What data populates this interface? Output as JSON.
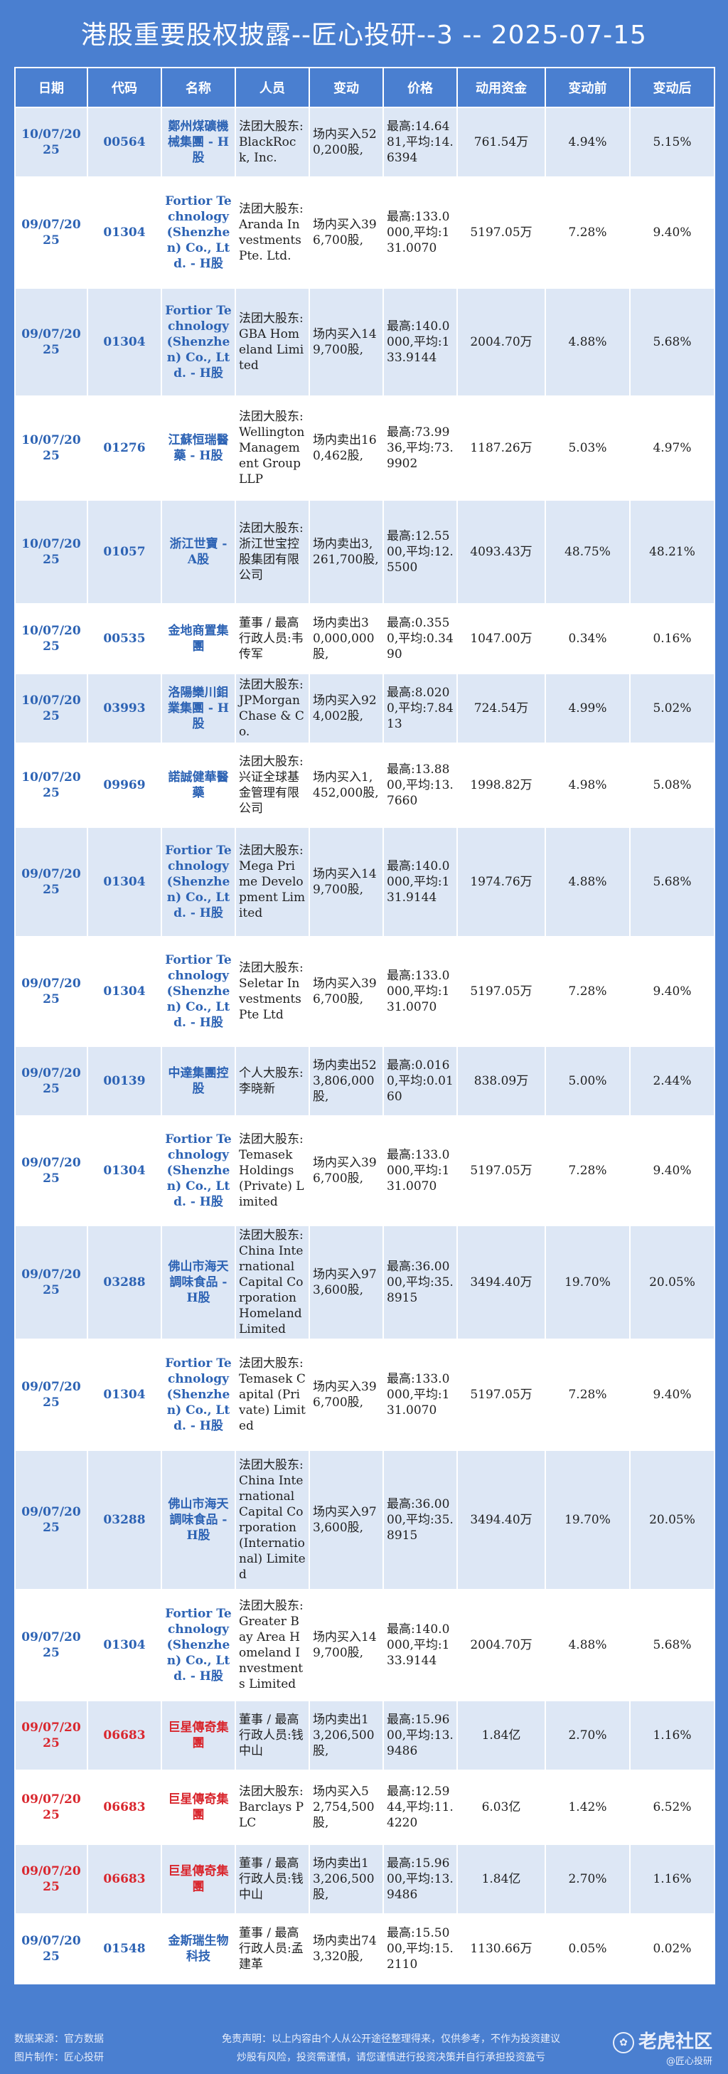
{
  "title": "港股重要股权披露--匠心投研--3 -- 2025-07-15",
  "columns": [
    "日期",
    "代码",
    "名称",
    "人员",
    "变动",
    "价格",
    "动用资金",
    "变动前",
    "变动后"
  ],
  "rows": [
    {
      "date": "10/07/2025",
      "code": "00564",
      "name": "鄭州煤礦機械集團 - H股",
      "person": "法团大股东:BlackRock, Inc.",
      "change": "场内买入520,200股,",
      "price": "最高:14.6481,平均:14.6394",
      "funds": "761.54万",
      "before": "4.94%",
      "after": "5.15%"
    },
    {
      "date": "09/07/2025",
      "code": "01304",
      "name": "Fortior Technology (Shenzhen) Co., Ltd. - H股",
      "person": "法团大股东:Aranda Investments Pte. Ltd.",
      "change": "场内买入396,700股,",
      "price": "最高:133.0000,平均:131.0070",
      "funds": "5197.05万",
      "before": "7.28%",
      "after": "9.40%"
    },
    {
      "date": "09/07/2025",
      "code": "01304",
      "name": "Fortior Technology (Shenzhen) Co., Ltd. - H股",
      "person": "法团大股东:GBA Homeland Limited",
      "change": "场内买入149,700股,",
      "price": "最高:140.0000,平均:133.9144",
      "funds": "2004.70万",
      "before": "4.88%",
      "after": "5.68%"
    },
    {
      "date": "10/07/2025",
      "code": "01276",
      "name": "江蘇恒瑞醫藥 - H股",
      "person": "法团大股东:Wellington Management Group LLP",
      "change": "场内卖出160,462股,",
      "price": "最高:73.9936,平均:73.9902",
      "funds": "1187.26万",
      "before": "5.03%",
      "after": "4.97%"
    },
    {
      "date": "10/07/2025",
      "code": "01057",
      "name": "浙江世寶 - A股",
      "person": "法团大股东:浙江世宝控股集团有限公司",
      "change": "场内卖出3,261,700股,",
      "price": "最高:12.5500,平均:12.5500",
      "funds": "4093.43万",
      "before": "48.75%",
      "after": "48.21%"
    },
    {
      "date": "10/07/2025",
      "code": "00535",
      "name": "金地商置集團",
      "person": "董事 / 最高行政人员:韦传军",
      "change": "场内卖出30,000,000股,",
      "price": "最高:0.3550,平均:0.3490",
      "funds": "1047.00万",
      "before": "0.34%",
      "after": "0.16%"
    },
    {
      "date": "10/07/2025",
      "code": "03993",
      "name": "洛陽欒川鉬業集團 - H股",
      "person": "法团大股东:JPMorgan Chase & Co.",
      "change": "场内买入924,002股,",
      "price": "最高:8.0200,平均:7.8413",
      "funds": "724.54万",
      "before": "4.99%",
      "after": "5.02%"
    },
    {
      "date": "10/07/2025",
      "code": "09969",
      "name": "諾誠健華醫藥",
      "person": "法团大股东:兴证全球基金管理有限公司",
      "change": "场内买入1,452,000股,",
      "price": "最高:13.8800,平均:13.7660",
      "funds": "1998.82万",
      "before": "4.98%",
      "after": "5.08%"
    },
    {
      "date": "09/07/2025",
      "code": "01304",
      "name": "Fortior Technology (Shenzhen) Co., Ltd. - H股",
      "person": "法团大股东:Mega Prime Development Limited",
      "change": "场内买入149,700股,",
      "price": "最高:140.0000,平均:131.9144",
      "funds": "1974.76万",
      "before": "4.88%",
      "after": "5.68%"
    },
    {
      "date": "09/07/2025",
      "code": "01304",
      "name": "Fortior Technology (Shenzhen) Co., Ltd. - H股",
      "person": "法团大股东:Seletar Investments Pte Ltd",
      "change": "场内买入396,700股,",
      "price": "最高:133.0000,平均:131.0070",
      "funds": "5197.05万",
      "before": "7.28%",
      "after": "9.40%"
    },
    {
      "date": "09/07/2025",
      "code": "00139",
      "name": "中達集團控股",
      "person": "个人大股东:李晓新",
      "change": "场内卖出523,806,000股,",
      "price": "最高:0.0160,平均:0.0160",
      "funds": "838.09万",
      "before": "5.00%",
      "after": "2.44%"
    },
    {
      "date": "09/07/2025",
      "code": "01304",
      "name": "Fortior Technology (Shenzhen) Co., Ltd. - H股",
      "person": "法团大股东:Temasek Holdings (Private) Limited",
      "change": "场内买入396,700股,",
      "price": "最高:133.0000,平均:131.0070",
      "funds": "5197.05万",
      "before": "7.28%",
      "after": "9.40%"
    },
    {
      "date": "09/07/2025",
      "code": "03288",
      "name": "佛山市海天調味食品 - H股",
      "person": "法团大股东:China International Capital Corporation Homeland Limited",
      "change": "场内买入973,600股,",
      "price": "最高:36.0000,平均:35.8915",
      "funds": "3494.40万",
      "before": "19.70%",
      "after": "20.05%"
    },
    {
      "date": "09/07/2025",
      "code": "01304",
      "name": "Fortior Technology (Shenzhen) Co., Ltd. - H股",
      "person": "法团大股东:Temasek Capital (Private) Limited",
      "change": "场内买入396,700股,",
      "price": "最高:133.0000,平均:131.0070",
      "funds": "5197.05万",
      "before": "7.28%",
      "after": "9.40%"
    },
    {
      "date": "09/07/2025",
      "code": "03288",
      "name": "佛山市海天調味食品 - H股",
      "person": "法团大股东:China International Capital Corporation (International) Limited",
      "change": "场内买入973,600股,",
      "price": "最高:36.0000,平均:35.8915",
      "funds": "3494.40万",
      "before": "19.70%",
      "after": "20.05%"
    },
    {
      "date": "09/07/2025",
      "code": "01304",
      "name": "Fortior Technology (Shenzhen) Co., Ltd. - H股",
      "person": "法团大股东:Greater Bay Area Homeland Investments Limited",
      "change": "场内买入149,700股,",
      "price": "最高:140.0000,平均:133.9144",
      "funds": "2004.70万",
      "before": "4.88%",
      "after": "5.68%"
    },
    {
      "date": "09/07/2025",
      "code": "06683",
      "name": "巨星傳奇集團",
      "person": "董事 / 最高行政人员:钱中山",
      "change": "场内卖出13,206,500股,",
      "price": "最高:15.9600,平均:13.9486",
      "funds": "1.84亿",
      "before": "2.70%",
      "after": "1.16%",
      "red": true
    },
    {
      "date": "09/07/2025",
      "code": "06683",
      "name": "巨星傳奇集團",
      "person": "法团大股东:Barclays PLC",
      "change": "场内买入52,754,500股,",
      "price": "最高:12.5944,平均:11.4220",
      "funds": "6.03亿",
      "before": "1.42%",
      "after": "6.52%",
      "red": true
    },
    {
      "date": "09/07/2025",
      "code": "06683",
      "name": "巨星傳奇集團",
      "person": "董事 / 最高行政人员:钱中山",
      "change": "场内卖出13,206,500股,",
      "price": "最高:15.9600,平均:13.9486",
      "funds": "1.84亿",
      "before": "2.70%",
      "after": "1.16%",
      "red": true
    },
    {
      "date": "09/07/2025",
      "code": "01548",
      "name": "金斯瑞生物科技",
      "person": "董事 / 最高行政人员:孟建革",
      "change": "场内卖出743,320股,",
      "price": "最高:15.5000,平均:15.2110",
      "funds": "1130.66万",
      "before": "0.05%",
      "after": "0.02%"
    }
  ],
  "footer": {
    "source": "数据来源：官方数据",
    "maker": "图片制作：匠心投研",
    "disclaimer_1": "免责声明：以上内容由个人从公开途径整理得来，仅供参考，不作为投资建议",
    "disclaimer_2": "炒股有风险，投资需谨慎，请您谨慎进行投资决策并自行承担投资盈亏",
    "logo": "老虎社区",
    "logo_sub": "@匠心投研"
  },
  "colors": {
    "background": "#4a7fd0",
    "row_alt": "#dde7f5",
    "link_blue": "#2d63b4",
    "red": "#d9272e"
  }
}
